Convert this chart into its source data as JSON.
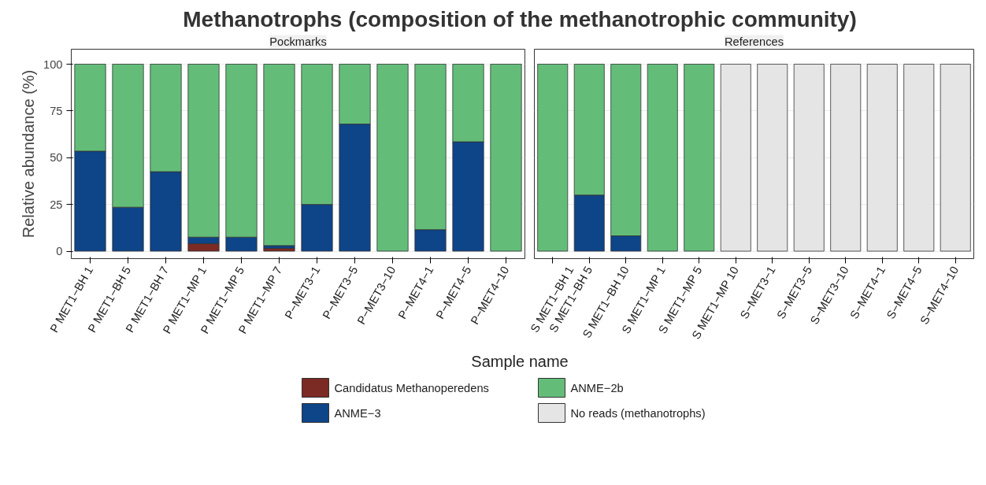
{
  "chart_data": [
    {
      "type": "bar",
      "title": "Methanotrophs (composition of the methanotrophic community)",
      "subtitle": "Pockmarks",
      "xlabel": "Sample name",
      "ylabel": "Relative abundance (%)",
      "stacked": true,
      "categories": [
        "P MET1−BH 1",
        "P MET1−BH 5",
        "P MET1−BH 7",
        "P MET1−MP 1",
        "P MET1−MP 5",
        "P MET1−MP 7",
        "P−MET3−1",
        "P−MET3−5",
        "P−MET3−10",
        "P−MET4−1",
        "P−MET4−5",
        "P−MET4−10"
      ],
      "series": [
        {
          "name": "Candidatus  Methanoperedens",
          "color": "#7b2a24",
          "values": [
            0,
            0,
            0,
            4,
            0,
            1.5,
            0,
            0,
            0,
            0,
            0,
            0
          ]
        },
        {
          "name": "ANME−3",
          "color": "#0e4488",
          "values": [
            53.5,
            23.5,
            42.5,
            3.5,
            7.5,
            1.5,
            25,
            68,
            0,
            11.5,
            58.5,
            0
          ]
        },
        {
          "name": "ANME−2b",
          "color": "#63bd79",
          "values": [
            46.5,
            76.5,
            57.5,
            92.5,
            92.5,
            97,
            75,
            32,
            100,
            88.5,
            41.5,
            100
          ]
        },
        {
          "name": "No reads (methanotrophs)",
          "color": "#e5e5e5",
          "values": [
            0,
            0,
            0,
            0,
            0,
            0,
            0,
            0,
            0,
            0,
            0,
            0
          ]
        }
      ],
      "ylim": [
        -4,
        108
      ],
      "yticks": [
        0,
        25,
        50,
        75,
        100
      ],
      "grid": "y",
      "legend": "bottom"
    },
    {
      "type": "bar",
      "subtitle": "References",
      "stacked": true,
      "categories": [
        "S MET1−BH 1",
        "S MET1−BH 5",
        "S MET1−BH 10",
        "S MET1−MP 1",
        "S MET1−MP 5",
        "S MET1−MP 10",
        "S−MET3−1",
        "S−MET3−5",
        "S−MET3−10",
        "S−MET4−1",
        "S−MET4−5",
        "S−MET4−10"
      ],
      "series": [
        {
          "color": "#0e4488",
          "values": [
            0,
            30,
            8.2,
            0,
            0,
            0,
            0,
            0,
            0,
            0,
            0,
            0
          ]
        },
        {
          "color": "#63bd79",
          "values": [
            100,
            70,
            91.8,
            100,
            100,
            0,
            0,
            0,
            0,
            0,
            0,
            0
          ]
        },
        {
          "color": "#e5e5e5",
          "values": [
            0,
            0,
            0,
            0,
            0,
            100,
            100,
            100,
            100,
            100,
            100,
            100
          ]
        }
      ],
      "ylim": [
        -4,
        108
      ],
      "yticks": [
        0,
        25,
        50,
        75,
        100
      ],
      "grid": "y",
      "tick_labels": "x"
    }
  ]
}
